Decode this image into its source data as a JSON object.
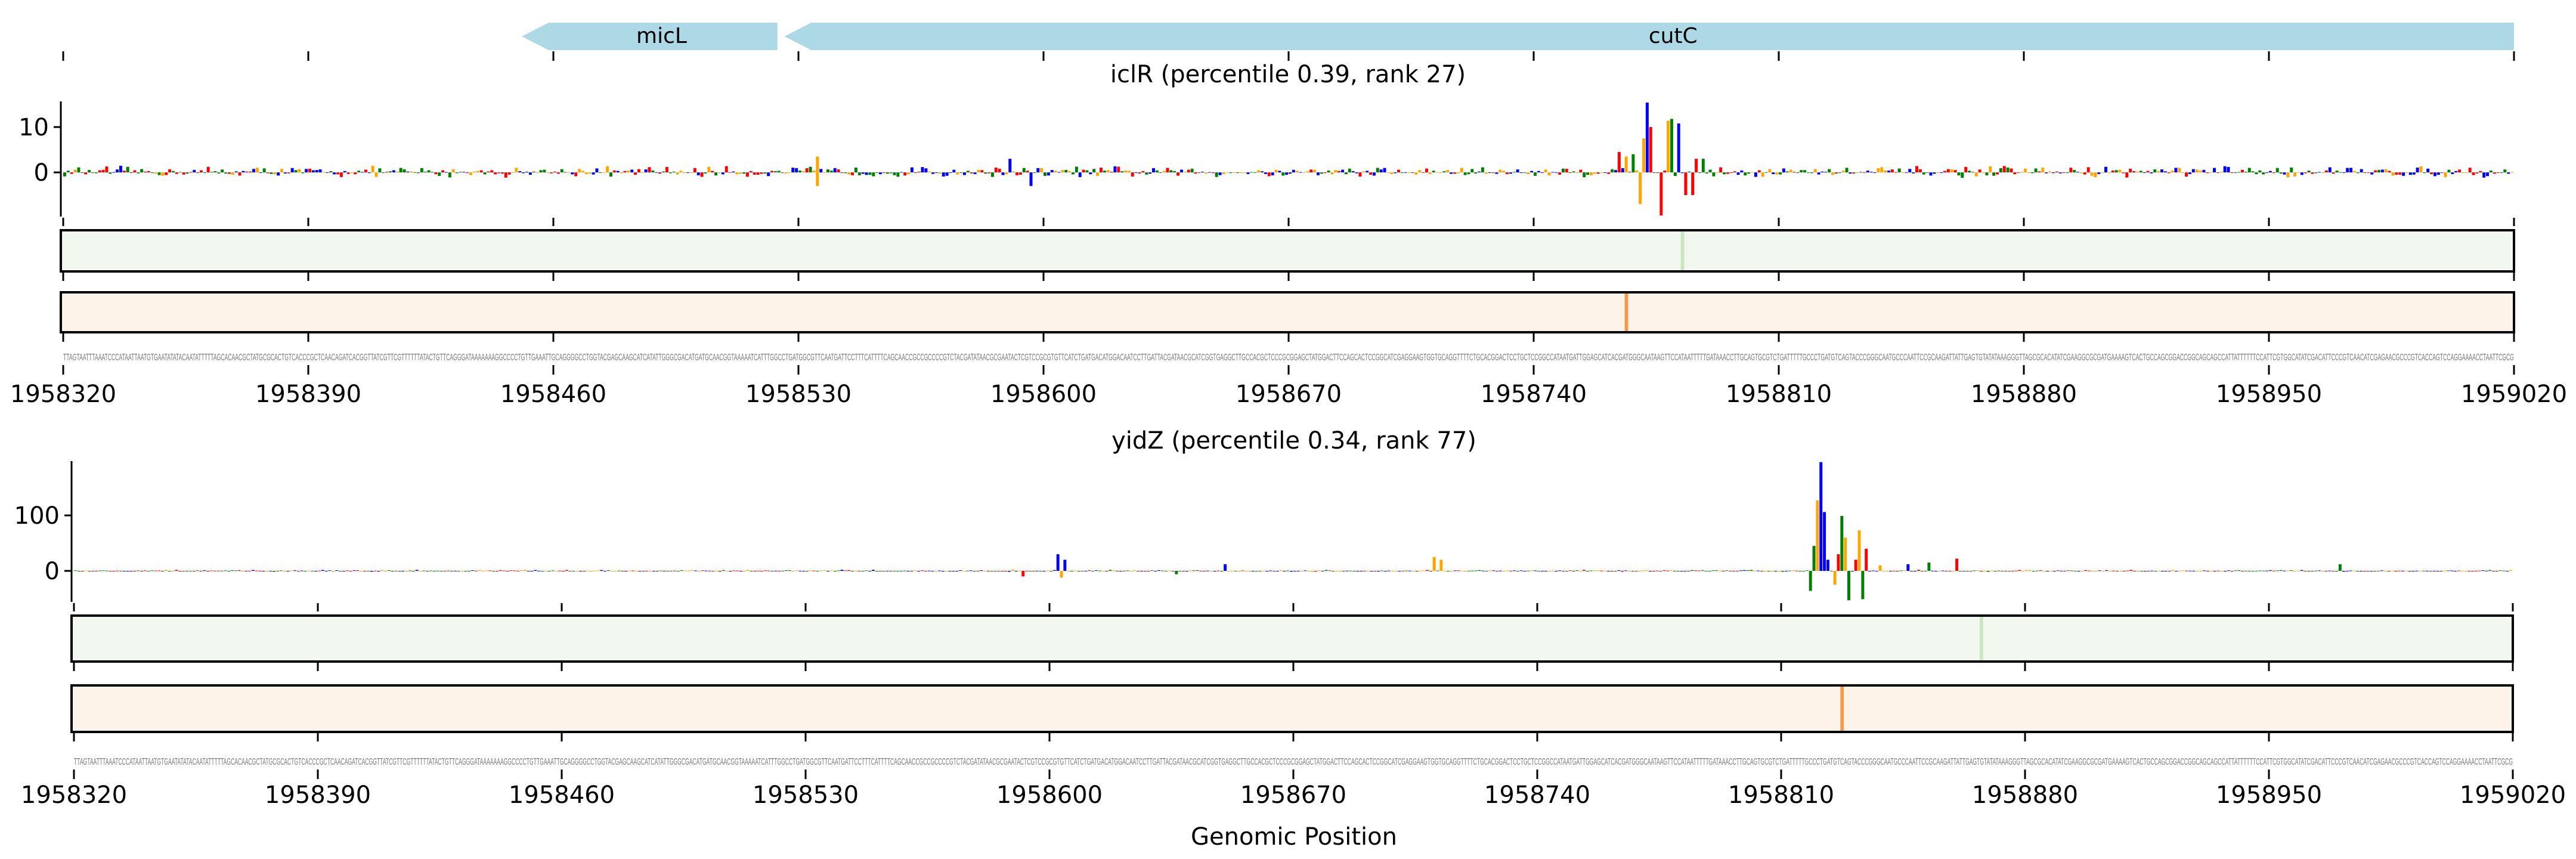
{
  "colors": {
    "A": "#ff0000",
    "C": "#0000ff",
    "G": "#ffa500",
    "T": "#008000",
    "gene": "#add8e6",
    "attr_green": "#f2f8ef",
    "attr_orange": "#fdf3e9",
    "green_hi": "#c9e6c1",
    "orange_hi": "#f59a4c"
  },
  "genes": [
    {
      "name": "micL",
      "start": 1958451,
      "end": 1958524,
      "strand": "-"
    },
    {
      "name": "cutC",
      "start": 1958526,
      "end": 1959020,
      "strand": "-"
    }
  ],
  "xlabel": "Genomic Position",
  "sequence": "TTAGTAATTTAAATCCCATAATTAATGTGAATATATACAATATTTTTAGCACAACGCTATGCGCACTGTCACCCGCTCAACAGATCACGGTTATCGTTCGTTTTTTATACTGTTCAGGGATAAAAAAAGGCCCCTGTTGAAATTGCAGGGGCCTGGTACGAGCAAGCATCATATTGGGCGACATGATGCAACGGTAAAAATCATTTGGCCTGATGGCGTTCAATGATTCCTTTCATTTTCAGCAACCGCCGCCCCGTCTACGATATAACGCGAATACTCGTCCGCGTGTTCATCTGATGACATGGACAATCCTTGATTACGATAACGCATCGGTGAGGCTTGCCACGCTCCCGCGGAGCTATGGACTTCCAGCACTCCGGCATCGAGGAAGTGGTGCAGGTTTTCTGCACGGACTCCTGCTCCGGCCATAATGATTGGAGCATCACGATGGGCAATAAGTTCCATAATTTTTGATAAACCTTGCAGTGCGTCTGATTTTTGCCCTGATGTCAGTACCCGGGCAATGCCCAATTCCGCAAGATTATTGAGTGTATATAAAGGGTTAGCGCACATATCGAAGGCGCGATGAAAAGTCACTGCCAGCGGACCGGCAGCAGCCATTATTTTTTCCATTCGTGGCATATCGACATTCCCGTCAACATCGAGAACGCCCGTCACCAGTCCAGGAAAACCTAATTCGCG",
  "chart_data": [
    {
      "type": "sequence-logo",
      "title": "iclR (percentile 0.39, rank 27)",
      "xlim": [
        1958320,
        1959020
      ],
      "xticks": [
        "1958320",
        "1958390",
        "1958460",
        "1958530",
        "1958600",
        "1958670",
        "1958740",
        "1958810",
        "1958880",
        "1958950",
        "1959020"
      ],
      "ylim": [
        -10,
        16
      ],
      "yticks": [
        {
          "v": 0,
          "label": "0"
        },
        {
          "v": 10,
          "label": "10"
        }
      ],
      "peaks": [
        [
          1958771,
          7.5
        ],
        [
          1958772,
          15.4
        ],
        [
          1958773,
          10
        ],
        [
          1958770,
          -7
        ],
        [
          1958776,
          -9.5
        ],
        [
          1958778,
          11.4
        ],
        [
          1958779,
          11.8
        ],
        [
          1958781,
          10.8
        ],
        [
          1958783,
          -5
        ],
        [
          1958785,
          -5
        ],
        [
          1958764,
          4.5
        ],
        [
          1958766,
          3.5
        ],
        [
          1958768,
          4
        ],
        [
          1958786,
          3
        ],
        [
          1958788,
          3
        ],
        [
          1958535,
          3.5
        ],
        [
          1958535,
          -3
        ],
        [
          1958590,
          3
        ],
        [
          1958596,
          -3
        ]
      ],
      "noise": 2.2,
      "heat_green_highlight": 1958782,
      "heat_orange_highlight": 1958766
    },
    {
      "type": "sequence-logo",
      "title": "yidZ (percentile 0.34, rank 77)",
      "xlim": [
        1958320,
        1959020
      ],
      "xticks": [
        "1958320",
        "1958390",
        "1958460",
        "1958530",
        "1958600",
        "1958670",
        "1958740",
        "1958810",
        "1958880",
        "1958950",
        "1959020"
      ],
      "ylim": [
        -55,
        190
      ],
      "yticks": [
        {
          "v": 0,
          "label": "0"
        },
        {
          "v": 100,
          "label": "100"
        }
      ],
      "peaks": [
        [
          1958818,
          -36
        ],
        [
          1958819,
          45
        ],
        [
          1958820,
          127
        ],
        [
          1958821,
          196
        ],
        [
          1958822,
          106
        ],
        [
          1958823,
          20
        ],
        [
          1958825,
          -25
        ],
        [
          1958826,
          30
        ],
        [
          1958827,
          99
        ],
        [
          1958828,
          60
        ],
        [
          1958829,
          -53
        ],
        [
          1958831,
          20
        ],
        [
          1958832,
          73
        ],
        [
          1958833,
          -51
        ],
        [
          1958834,
          40
        ],
        [
          1958838,
          10
        ],
        [
          1958846,
          12
        ],
        [
          1958852,
          15
        ],
        [
          1958860,
          22
        ],
        [
          1958602,
          30
        ],
        [
          1958604,
          20
        ],
        [
          1958603,
          -12
        ],
        [
          1958710,
          25
        ],
        [
          1958712,
          20
        ],
        [
          1958592,
          -10
        ],
        [
          1958636,
          -6
        ],
        [
          1958650,
          12
        ],
        [
          1958970,
          12
        ]
      ],
      "noise": 3,
      "heat_green_highlight": 1958867,
      "heat_orange_highlight": 1958827
    }
  ]
}
